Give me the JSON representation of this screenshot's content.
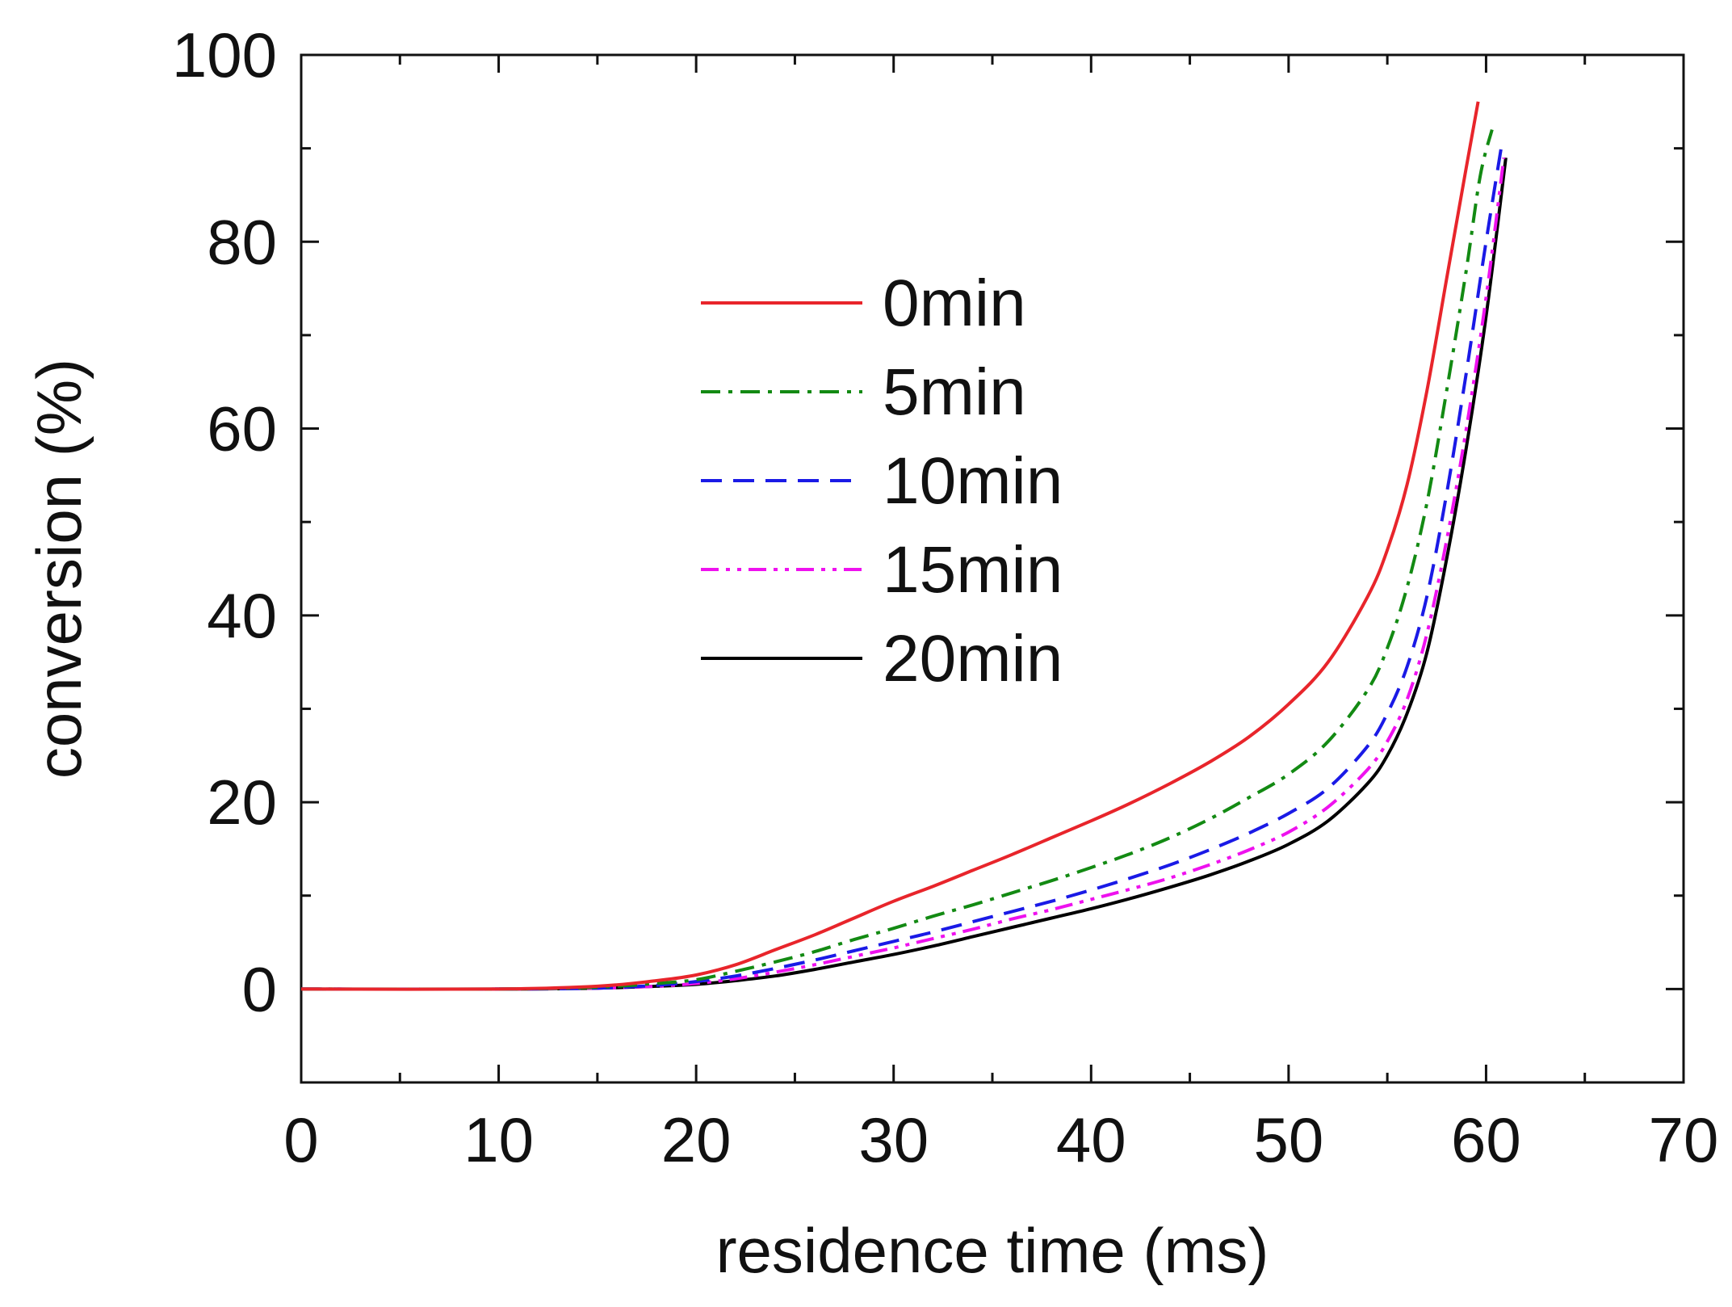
{
  "chart_data": {
    "type": "line",
    "title": "",
    "xlabel": "residence time (ms)",
    "ylabel": "conversion (%)",
    "xlim": [
      0,
      70
    ],
    "ylim": [
      -10,
      100
    ],
    "xticks": [
      0,
      10,
      20,
      30,
      40,
      50,
      60,
      70
    ],
    "yticks": [
      0,
      20,
      40,
      60,
      80,
      100
    ],
    "grid": false,
    "legend_position": "upper-middle",
    "series": [
      {
        "name": "0min",
        "color": "#e8252b",
        "style": "solid",
        "points": [
          [
            0,
            0
          ],
          [
            10,
            0
          ],
          [
            15,
            0.3
          ],
          [
            18,
            0.9
          ],
          [
            20,
            1.5
          ],
          [
            22,
            2.6
          ],
          [
            24,
            4.2
          ],
          [
            26,
            5.8
          ],
          [
            28,
            7.6
          ],
          [
            30,
            9.4
          ],
          [
            32,
            11.0
          ],
          [
            34,
            12.7
          ],
          [
            36,
            14.4
          ],
          [
            38,
            16.2
          ],
          [
            40,
            18.0
          ],
          [
            42,
            19.9
          ],
          [
            44,
            22.0
          ],
          [
            46,
            24.3
          ],
          [
            48,
            27.0
          ],
          [
            50,
            30.5
          ],
          [
            52,
            35.0
          ],
          [
            54,
            42.0
          ],
          [
            55,
            47.0
          ],
          [
            56,
            54.0
          ],
          [
            57,
            64.0
          ],
          [
            58,
            76.0
          ],
          [
            59,
            88.0
          ],
          [
            59.6,
            95.0
          ]
        ]
      },
      {
        "name": "5min",
        "color": "#138a13",
        "style": "dashdot",
        "points": [
          [
            0,
            0
          ],
          [
            10,
            0
          ],
          [
            15,
            0.2
          ],
          [
            18,
            0.6
          ],
          [
            20,
            1.0
          ],
          [
            22,
            1.9
          ],
          [
            24,
            2.9
          ],
          [
            26,
            4.0
          ],
          [
            28,
            5.3
          ],
          [
            30,
            6.5
          ],
          [
            32,
            7.8
          ],
          [
            34,
            9.0
          ],
          [
            36,
            10.3
          ],
          [
            38,
            11.6
          ],
          [
            40,
            13.0
          ],
          [
            42,
            14.5
          ],
          [
            44,
            16.2
          ],
          [
            46,
            18.2
          ],
          [
            48,
            20.5
          ],
          [
            50,
            23.0
          ],
          [
            52,
            26.5
          ],
          [
            54,
            32.0
          ],
          [
            55,
            36.5
          ],
          [
            56,
            43.0
          ],
          [
            57,
            52.0
          ],
          [
            58,
            64.0
          ],
          [
            59,
            77.0
          ],
          [
            59.7,
            87.0
          ],
          [
            60.3,
            92.0
          ]
        ]
      },
      {
        "name": "10min",
        "color": "#1a1ae6",
        "style": "dashed",
        "points": [
          [
            0,
            0
          ],
          [
            10,
            0
          ],
          [
            15,
            0.1
          ],
          [
            18,
            0.4
          ],
          [
            20,
            0.8
          ],
          [
            22,
            1.4
          ],
          [
            24,
            2.2
          ],
          [
            26,
            3.1
          ],
          [
            28,
            4.1
          ],
          [
            30,
            5.1
          ],
          [
            32,
            6.1
          ],
          [
            34,
            7.2
          ],
          [
            36,
            8.3
          ],
          [
            38,
            9.4
          ],
          [
            40,
            10.6
          ],
          [
            42,
            11.9
          ],
          [
            44,
            13.3
          ],
          [
            46,
            14.9
          ],
          [
            48,
            16.7
          ],
          [
            50,
            18.8
          ],
          [
            52,
            21.5
          ],
          [
            54,
            26.0
          ],
          [
            55,
            29.5
          ],
          [
            56,
            34.5
          ],
          [
            57,
            42.0
          ],
          [
            58,
            53.0
          ],
          [
            59,
            66.0
          ],
          [
            60,
            80.0
          ],
          [
            60.8,
            90.5
          ]
        ]
      },
      {
        "name": "15min",
        "color": "#ee11ee",
        "style": "dashdotdot",
        "points": [
          [
            0,
            0
          ],
          [
            10,
            0
          ],
          [
            15,
            0.1
          ],
          [
            18,
            0.3
          ],
          [
            20,
            0.6
          ],
          [
            22,
            1.1
          ],
          [
            24,
            1.8
          ],
          [
            26,
            2.6
          ],
          [
            28,
            3.5
          ],
          [
            30,
            4.4
          ],
          [
            32,
            5.4
          ],
          [
            34,
            6.4
          ],
          [
            36,
            7.5
          ],
          [
            38,
            8.5
          ],
          [
            40,
            9.6
          ],
          [
            42,
            10.7
          ],
          [
            44,
            11.9
          ],
          [
            46,
            13.3
          ],
          [
            48,
            14.9
          ],
          [
            50,
            16.8
          ],
          [
            52,
            19.5
          ],
          [
            54,
            23.5
          ],
          [
            55,
            26.5
          ],
          [
            56,
            31.0
          ],
          [
            57,
            38.0
          ],
          [
            58,
            48.0
          ],
          [
            59,
            60.0
          ],
          [
            60,
            74.0
          ],
          [
            60.9,
            89.0
          ]
        ]
      },
      {
        "name": "20min",
        "color": "#000000",
        "style": "solid",
        "points": [
          [
            0,
            0
          ],
          [
            10,
            0
          ],
          [
            15,
            0.1
          ],
          [
            18,
            0.3
          ],
          [
            20,
            0.5
          ],
          [
            22,
            0.9
          ],
          [
            24,
            1.4
          ],
          [
            26,
            2.1
          ],
          [
            28,
            2.9
          ],
          [
            30,
            3.7
          ],
          [
            32,
            4.6
          ],
          [
            34,
            5.6
          ],
          [
            36,
            6.6
          ],
          [
            38,
            7.6
          ],
          [
            40,
            8.6
          ],
          [
            42,
            9.7
          ],
          [
            44,
            10.9
          ],
          [
            46,
            12.2
          ],
          [
            48,
            13.7
          ],
          [
            50,
            15.5
          ],
          [
            52,
            18.0
          ],
          [
            54,
            22.0
          ],
          [
            55,
            25.0
          ],
          [
            56,
            29.5
          ],
          [
            57,
            36.0
          ],
          [
            58,
            46.0
          ],
          [
            59,
            58.0
          ],
          [
            60,
            72.0
          ],
          [
            61,
            89.0
          ]
        ]
      }
    ]
  }
}
